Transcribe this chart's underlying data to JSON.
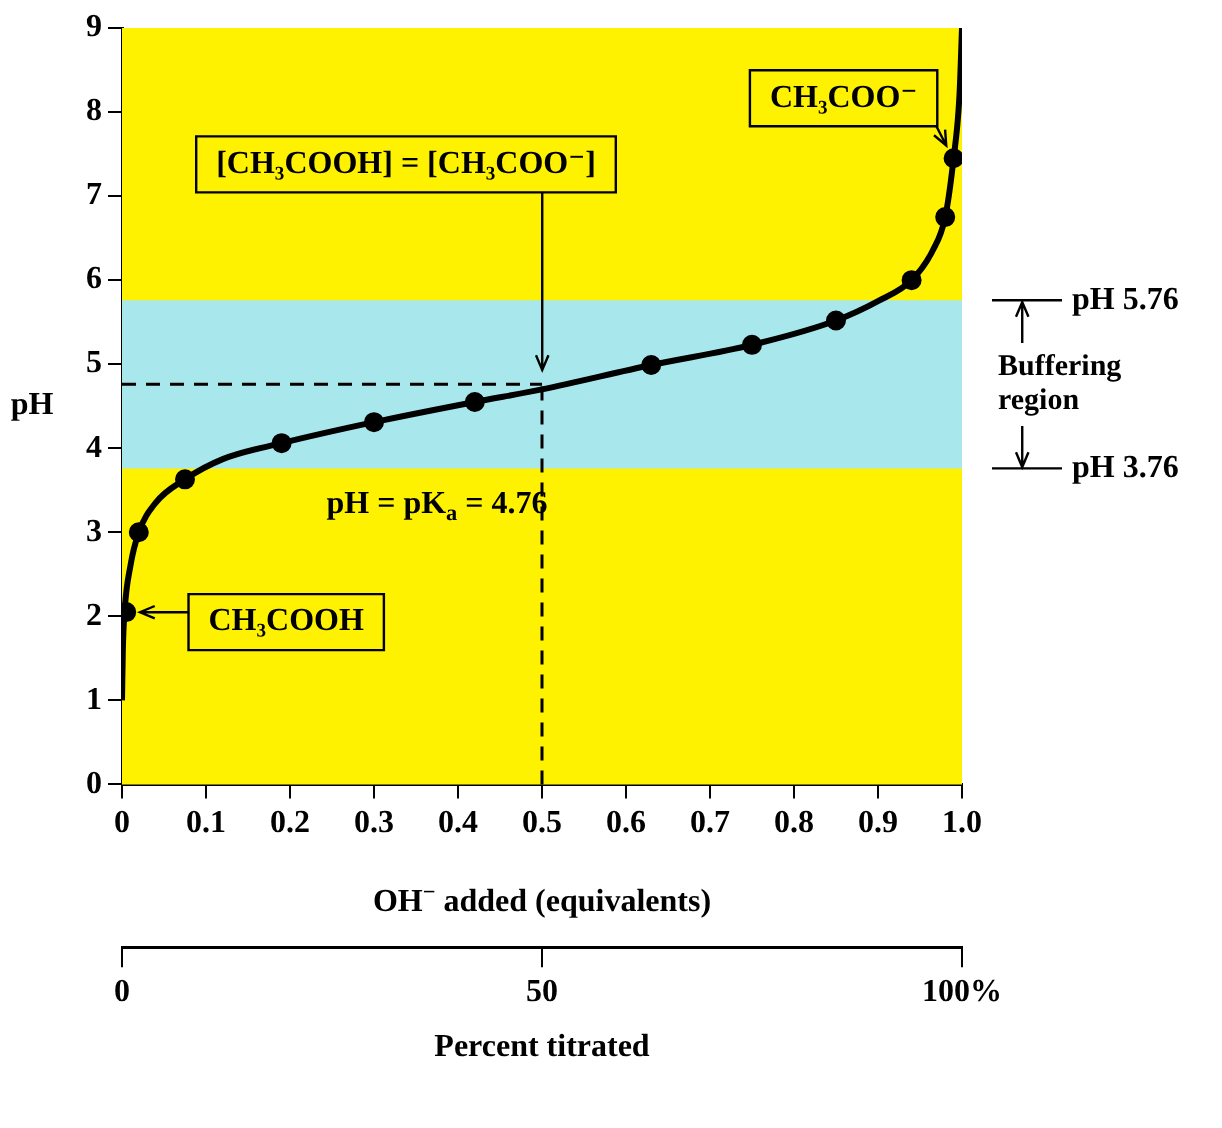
{
  "chart_data": {
    "type": "line",
    "xlabel": "OH$^{−}$ added (equivalents)",
    "ylabel": "pH",
    "xlim": [
      0,
      1
    ],
    "xticks": [
      0,
      0.1,
      0.2,
      0.3,
      0.4,
      0.5,
      0.6,
      0.7,
      0.8,
      0.9,
      {
        "value": 1,
        "label": "1.0"
      }
    ],
    "ylim": [
      0,
      9
    ],
    "yticks": [
      0,
      1,
      2,
      3,
      4,
      5,
      6,
      7,
      8,
      9
    ],
    "x2lim": [
      0,
      100
    ],
    "x2ticks": [
      0,
      50,
      {
        "value": 100,
        "label": "100%"
      }
    ],
    "x2label": "Percent titrated",
    "grid": false,
    "legend": false,
    "series": [
      {
        "type": "line",
        "color": "#000000",
        "marker": "none",
        "x": [
          0,
          0.001,
          0.003,
          0.01,
          0.02,
          0.04,
          0.075,
          0.12,
          0.19,
          0.3,
          0.42,
          0.5,
          0.63,
          0.75,
          0.85,
          0.9,
          0.94,
          0.965,
          0.98,
          0.99,
          0.997,
          1
        ],
        "values": [
          1,
          1.6,
          2.05,
          2.6,
          3,
          3.35,
          3.63,
          3.87,
          4.06,
          4.31,
          4.55,
          4.7,
          4.99,
          5.23,
          5.52,
          5.75,
          6,
          6.35,
          6.75,
          7.45,
          8.2,
          9
        ]
      },
      {
        "type": "scatter",
        "color": "#000000",
        "marker": "circle",
        "x": [
          0.005,
          0.02,
          0.075,
          0.19,
          0.3,
          0.42,
          0.63,
          0.75,
          0.85,
          0.94,
          0.98,
          0.99
        ],
        "values": [
          2.05,
          3,
          3.63,
          4.06,
          4.31,
          4.55,
          4.99,
          5.23,
          5.52,
          6,
          6.75,
          7.45
        ]
      }
    ],
    "bands": [
      {
        "axis": "y",
        "from": 3.76,
        "to": 5.76,
        "label": "Buffering region",
        "color": "#a8e8ec"
      }
    ],
    "ref_lines": [
      {
        "axis": "y",
        "value": 4.76,
        "line_style": "dashed",
        "color": "#000000"
      },
      {
        "axis": "x",
        "value": 0.5,
        "line_style": "dashed",
        "color": "#000000"
      }
    ],
    "annotations": [
      {
        "text": "[CH₃COOH] = [CH₃COO⁻]",
        "x": 0.5,
        "y": 4.76
      },
      {
        "text": "CH₃COO⁻",
        "x": 0.99,
        "y": 7.45
      },
      {
        "text": "CH₃COOH",
        "x": 0.005,
        "y": 2.05
      },
      "pH = pK$_{a}$ = 4.76",
      "pH 5.76",
      "pH 3.76"
    ]
  }
}
